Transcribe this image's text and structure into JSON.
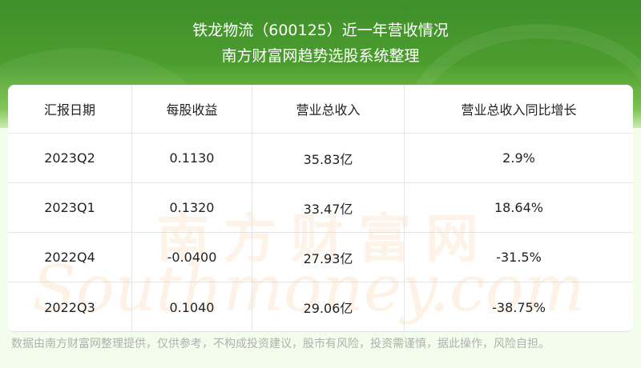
{
  "header": {
    "title": "铁龙物流（600125）近一年营收情况",
    "subtitle": "南方财富网趋势选股系统整理"
  },
  "table": {
    "columns": [
      "汇报日期",
      "每股收益",
      "营业总收入",
      "营业总收入同比增长"
    ],
    "rows": [
      [
        "2023Q2",
        "0.1130",
        "35.83亿",
        "2.9%"
      ],
      [
        "2023Q1",
        "0.1320",
        "33.47亿",
        "18.64%"
      ],
      [
        "2022Q4",
        "-0.0400",
        "27.93亿",
        "-31.5%"
      ],
      [
        "2022Q3",
        "0.1040",
        "29.06亿",
        "-38.75%"
      ]
    ]
  },
  "watermark": {
    "cn": "南方财富网",
    "en": "Southmoney.com"
  },
  "footer": {
    "disclaimer": "数据由南方财富网整理提供，仅供参考，不构成投资建议，股市有风险，投资需谨慎，据此操作，风险自担。"
  },
  "colors": {
    "header_green": "#4c9d2f",
    "background": "#f2fdeb",
    "watermark": "#fac896"
  }
}
